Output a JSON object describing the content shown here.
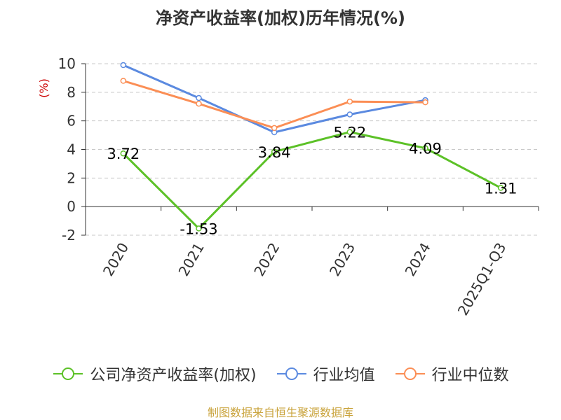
{
  "chart_data": {
    "type": "line",
    "title": "净资产收益率(加权)历年情况(%)",
    "ylabel": "(%)",
    "categories": [
      "2020",
      "2021",
      "2022",
      "2023",
      "2024",
      "2025Q1-Q3"
    ],
    "ylim": [
      -2,
      10
    ],
    "yticks": [
      -2,
      0,
      2,
      4,
      6,
      8,
      10
    ],
    "grid": "horizontal dashed",
    "legend_position": "bottom",
    "series": [
      {
        "name": "公司净资产收益率(加权)",
        "color": "#5cc127",
        "values": [
          3.72,
          -1.53,
          3.84,
          5.22,
          4.09,
          1.31
        ],
        "labels": [
          "3.72",
          "-1.53",
          "3.84",
          "5.22",
          "4.09",
          "1.31"
        ]
      },
      {
        "name": "行业均值",
        "color": "#5b8ae0",
        "values": [
          9.9,
          7.6,
          5.2,
          6.45,
          7.45,
          null
        ]
      },
      {
        "name": "行业中位数",
        "color": "#fb8e55",
        "values": [
          8.8,
          7.2,
          5.5,
          7.35,
          7.3,
          null
        ]
      }
    ]
  },
  "footer": {
    "source": "制图数据来自恒生聚源数据库"
  }
}
